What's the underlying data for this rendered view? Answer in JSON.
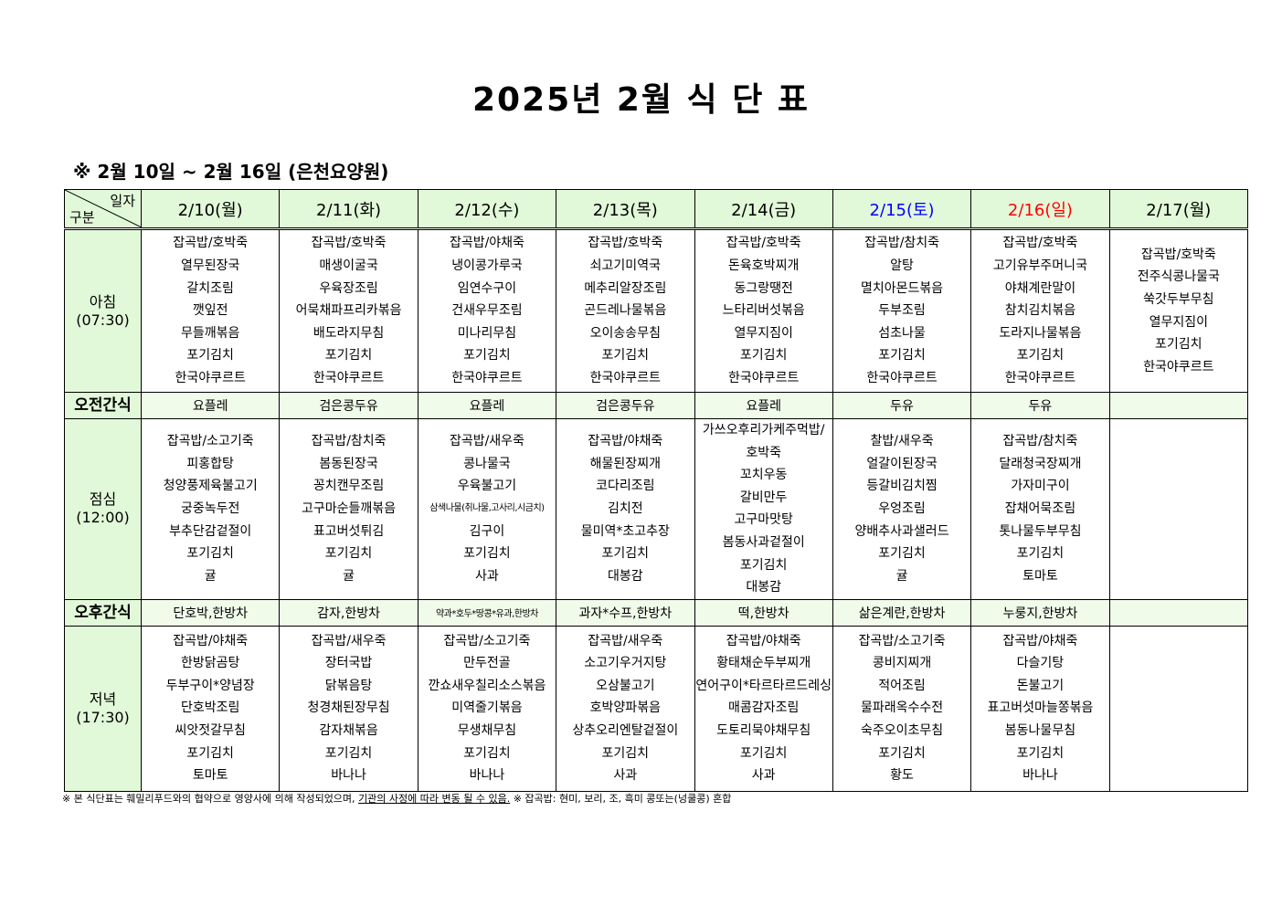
{
  "title": "2025년 2월 식 단 표",
  "subtitle": "※ 2월 10일 ~ 2월 16일 (은천요양원)",
  "corner": {
    "top_right": "일자",
    "bottom_left": "구분"
  },
  "colors": {
    "header_bg": "#e2f9d9",
    "snack_bg": "#f0fbea",
    "saturday": "#0000ff",
    "sunday": "#ff0000"
  },
  "days": [
    {
      "label": "2/10(월)",
      "color": "#000000"
    },
    {
      "label": "2/11(화)",
      "color": "#000000"
    },
    {
      "label": "2/12(수)",
      "color": "#000000"
    },
    {
      "label": "2/13(목)",
      "color": "#000000"
    },
    {
      "label": "2/14(금)",
      "color": "#000000"
    },
    {
      "label": "2/15(토)",
      "color": "#0000ff"
    },
    {
      "label": "2/16(일)",
      "color": "#ff0000"
    },
    {
      "label": "2/17(월)",
      "color": "#000000"
    }
  ],
  "rows": [
    {
      "key": "breakfast",
      "type": "meal",
      "label": "아침",
      "time": "(07:30)",
      "cells": [
        [
          "잡곡밥/호박죽",
          "열무된장국",
          "갈치조림",
          "깻잎전",
          "무들깨볶음",
          "포기김치",
          "한국야쿠르트"
        ],
        [
          "잡곡밥/호박죽",
          "매생이굴국",
          "우육장조림",
          "어묵채파프리카볶음",
          "배도라지무침",
          "포기김치",
          "한국야쿠르트"
        ],
        [
          "잡곡밥/야채죽",
          "냉이콩가루국",
          "임연수구이",
          "건새우무조림",
          "미나리무침",
          "포기김치",
          "한국야쿠르트"
        ],
        [
          "잡곡밥/호박죽",
          "쇠고기미역국",
          "메추리알장조림",
          "곤드레나물볶음",
          "오이송송무침",
          "포기김치",
          "한국야쿠르트"
        ],
        [
          "잡곡밥/호박죽",
          "돈육호박찌개",
          "동그랑땡전",
          "느타리버섯볶음",
          "열무지짐이",
          "포기김치",
          "한국야쿠르트"
        ],
        [
          "잡곡밥/참치죽",
          "알탕",
          "멸치아몬드볶음",
          "두부조림",
          "섬초나물",
          "포기김치",
          "한국야쿠르트"
        ],
        [
          "잡곡밥/호박죽",
          "고기유부주머니국",
          "야채계란말이",
          "참치김치볶음",
          "도라지나물볶음",
          "포기김치",
          "한국야쿠르트"
        ],
        [
          "잡곡밥/호박죽",
          "전주식콩나물국",
          "쑥갓두부무침",
          "열무지짐이",
          "포기김치",
          "한국야쿠르트"
        ]
      ]
    },
    {
      "key": "am-snack",
      "type": "snack",
      "label": "오전간식",
      "cells": [
        "요플레",
        "검은콩두유",
        "요플레",
        "검은콩두유",
        "요플레",
        "두유",
        "두유",
        ""
      ]
    },
    {
      "key": "lunch",
      "type": "meal",
      "label": "점심",
      "time": "(12:00)",
      "cells": [
        [
          "잡곡밥/소고기죽",
          "피홍합탕",
          "청양풍제육불고기",
          "궁중녹두전",
          "부추단감겉절이",
          "포기김치",
          "귤"
        ],
        [
          "잡곡밥/참치죽",
          "봄동된장국",
          "꽁치캔무조림",
          "고구마순들깨볶음",
          "표고버섯튀김",
          "포기김치",
          "귤"
        ],
        [
          "잡곡밥/새우죽",
          "콩나물국",
          "우육불고기",
          "삼색나물(취나물,고사리,시금치)",
          "김구이",
          "포기김치",
          "사과"
        ],
        [
          "잡곡밥/야채죽",
          "해물된장찌개",
          "코다리조림",
          "김치전",
          "물미역*초고추장",
          "포기김치",
          "대봉감"
        ],
        [
          "가쓰오후리가케주먹밥/",
          "호박죽",
          "꼬치우동",
          "갈비만두",
          "고구마맛탕",
          "봄동사과겉절이",
          "포기김치",
          "대봉감"
        ],
        [
          "찰밥/새우죽",
          "얼갈이된장국",
          "등갈비김치찜",
          "우엉조림",
          "양배추사과샐러드",
          "포기김치",
          "귤"
        ],
        [
          "잡곡밥/참치죽",
          "달래청국장찌개",
          "가자미구이",
          "잡채어묵조림",
          "톳나물두부무침",
          "포기김치",
          "토마토"
        ],
        []
      ]
    },
    {
      "key": "pm-snack",
      "type": "snack",
      "label": "오후간식",
      "cells": [
        "단호박,한방차",
        "감자,한방차",
        "약과*호두*땅콩*유과,한방차",
        "과자*수프,한방차",
        "떡,한방차",
        "삶은계란,한방차",
        "누룽지,한방차",
        ""
      ]
    },
    {
      "key": "dinner",
      "type": "meal",
      "label": "저녁",
      "time": "(17:30)",
      "cells": [
        [
          "잡곡밥/야채죽",
          "한방닭곰탕",
          "두부구이*양념장",
          "단호박조림",
          "씨앗젓갈무침",
          "포기김치",
          "토마토"
        ],
        [
          "잡곡밥/새우죽",
          "장터국밥",
          "닭볶음탕",
          "청경채된장무침",
          "감자채볶음",
          "포기김치",
          "바나나"
        ],
        [
          "잡곡밥/소고기죽",
          "만두전골",
          "깐쇼새우칠리소스볶음",
          "미역줄기볶음",
          "무생채무침",
          "포기김치",
          "바나나"
        ],
        [
          "잡곡밥/새우죽",
          "소고기우거지탕",
          "오삼불고기",
          "호박양파볶음",
          "상추오리엔탈겉절이",
          "포기김치",
          "사과"
        ],
        [
          "잡곡밥/야채죽",
          "황태채순두부찌개",
          "연어구이*타르타르드레싱",
          "매콤감자조림",
          "도토리묵야채무침",
          "포기김치",
          "사과"
        ],
        [
          "잡곡밥/소고기죽",
          "콩비지찌개",
          "적어조림",
          "물파래옥수수전",
          "숙주오이초무침",
          "포기김치",
          "황도"
        ],
        [
          "잡곡밥/야채죽",
          "다슬기탕",
          "돈불고기",
          "표고버섯마늘쫑볶음",
          "봄동나물무침",
          "포기김치",
          "바나나"
        ],
        []
      ]
    }
  ],
  "footer": {
    "part1": "※ 본 식단표는 훼밀리푸드와의 협약으로 영양사에 의해 작성되었으며,",
    "underlined": "기관의 사정에 따라 변동 될 수 있음.",
    "part2": "※ 잡곡밥: 현미, 보리, 조, 흑미 콩또는(넝쿨콩) 혼합"
  }
}
